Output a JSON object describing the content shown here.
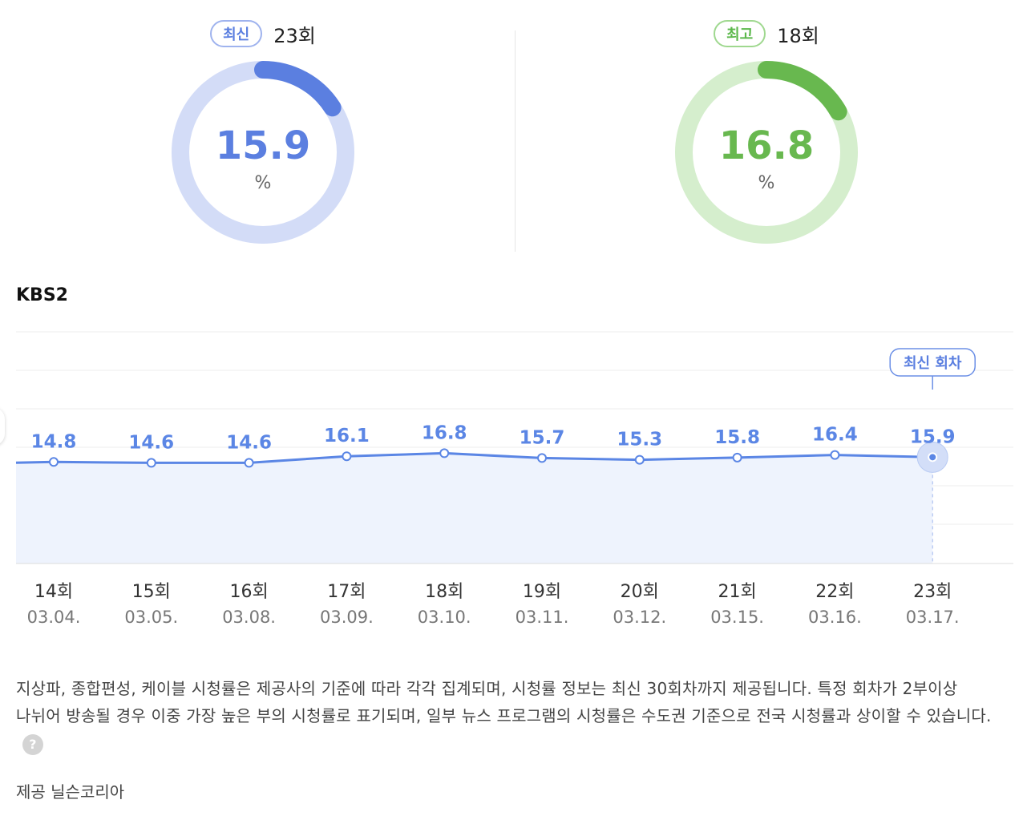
{
  "latest": {
    "badge": "최신",
    "episode": "23회",
    "value": 15.9,
    "value_text": "15.9",
    "unit": "%",
    "color": "#5b7fe0",
    "track_color": "#d3dcf7"
  },
  "highest": {
    "badge": "최고",
    "episode": "18회",
    "value": 16.8,
    "value_text": "16.8",
    "unit": "%",
    "color": "#68b84f",
    "track_color": "#d5eecd"
  },
  "channel": "KBS2",
  "chart_data": {
    "type": "line",
    "categories": [
      "14회",
      "15회",
      "16회",
      "17회",
      "18회",
      "19회",
      "20회",
      "21회",
      "22회",
      "23회"
    ],
    "dates": [
      "03.04.",
      "03.05.",
      "03.08.",
      "03.09.",
      "03.10.",
      "03.11.",
      "03.12.",
      "03.15.",
      "03.16.",
      "03.17."
    ],
    "values": [
      14.8,
      14.6,
      14.6,
      16.1,
      16.8,
      15.7,
      15.3,
      15.8,
      16.4,
      15.9
    ],
    "data_labels": [
      "14.8",
      "14.6",
      "14.6",
      "16.1",
      "16.8",
      "15.7",
      "15.3",
      "15.8",
      "16.4",
      "15.9"
    ],
    "highlight_index": 9,
    "highlight_label": "최신 회차",
    "line_color": "#5b86e5",
    "fill_color": "#eef3fd",
    "grid": true
  },
  "note": {
    "text": "지상파, 종합편성, 케이블 시청률은 제공사의 기준에 따라 각각 집계되며, 시청률 정보는 최신 30회차까지 제공됩니다. 특정 회차가 2부이상 나뉘어 방송될 경우 이중 가장 높은 부의 시청률로 표기되며, 일부 뉴스 프로그램의 시청률은 수도권 기준으로 전국 시청률과 상이할 수 있습니다.",
    "help_glyph": "?"
  },
  "provider": "제공 닐슨코리아"
}
